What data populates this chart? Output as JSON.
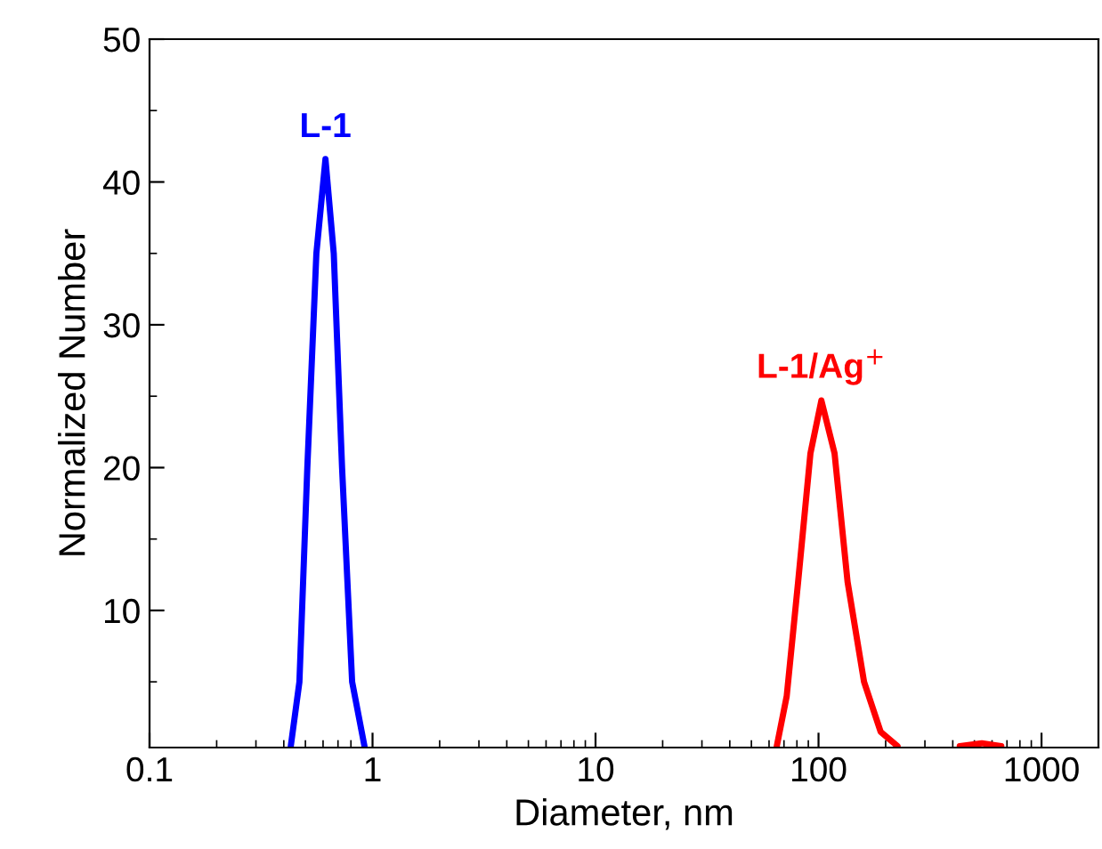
{
  "chart_data": {
    "type": "line",
    "xlabel": "Diameter, nm",
    "ylabel": "Normalized Number",
    "log": "x",
    "xlim": [
      0.1,
      1800
    ],
    "xticks": [
      {
        "value": 0.1,
        "label": "0.1"
      },
      {
        "value": 1,
        "label": "1"
      },
      {
        "value": 10,
        "label": "10"
      },
      {
        "value": 100,
        "label": "100"
      },
      {
        "value": 1000,
        "label": "1000"
      }
    ],
    "ylim": [
      0.4,
      50
    ],
    "yticks": [
      10,
      20,
      30,
      40,
      50
    ],
    "grid": false,
    "legend": false,
    "marker": "none",
    "line_style": "solid",
    "series": [
      {
        "name": "L-1",
        "color": "#0000ff",
        "x": [
          0.43,
          0.47,
          0.51,
          0.56,
          0.615,
          0.67,
          0.73,
          0.81,
          0.92
        ],
        "values": [
          0.5,
          5,
          20,
          35,
          41.6,
          35,
          20,
          5,
          0.5
        ]
      },
      {
        "name": "L-1/Ag$^{+}$",
        "color": "#ff0000",
        "x": [
          65,
          72,
          81,
          92,
          103,
          118,
          135,
          160,
          190,
          226,
          300,
          430,
          540,
          660
        ],
        "values": [
          0.5,
          4,
          12,
          21,
          24.7,
          21,
          12,
          5,
          1.5,
          0.5,
          null,
          0.5,
          0.7,
          0.5
        ]
      }
    ]
  }
}
